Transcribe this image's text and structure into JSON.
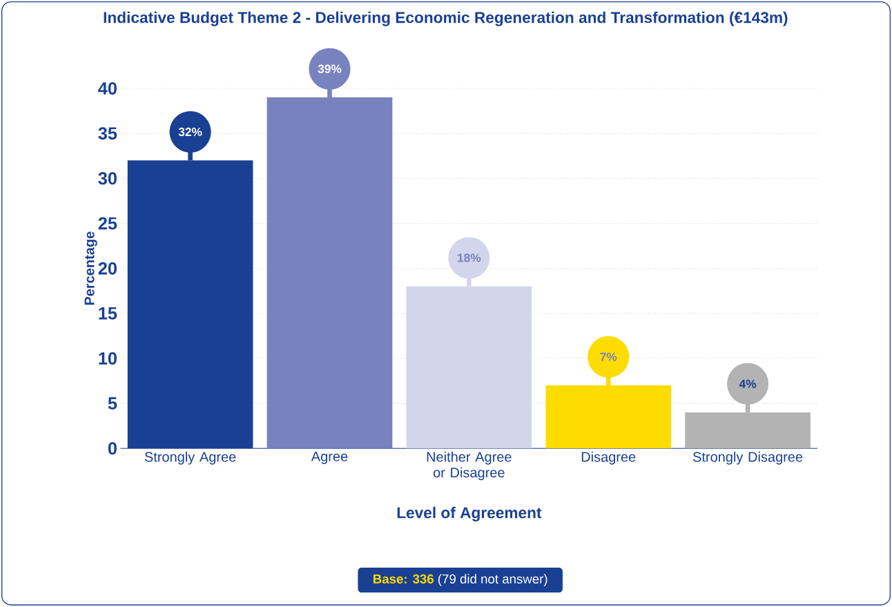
{
  "chart_data": {
    "type": "bar",
    "title": "Indicative Budget Theme 2 - Delivering Economic Regeneration and Transformation (€143m)",
    "xlabel": "Level of Agreement",
    "ylabel": "Percentage",
    "categories": [
      "Strongly Agree",
      "Agree",
      "Neither Agree or Disagree",
      "Disagree",
      "Strongly Disagree"
    ],
    "values": [
      32,
      39,
      18,
      7,
      4
    ],
    "colors": [
      "#1a4094",
      "#7882bf",
      "#d3d5ec",
      "#ffdc00",
      "#b3b3b3"
    ],
    "value_labels": [
      "32%",
      "39%",
      "18%",
      "7%",
      "4%"
    ],
    "ylim": [
      0,
      40
    ],
    "yticks": [
      0,
      5,
      10,
      15,
      20,
      25,
      30,
      35,
      40
    ],
    "grid": "y",
    "annotations": [
      "**Base: 336** (79 did not answer)"
    ]
  }
}
